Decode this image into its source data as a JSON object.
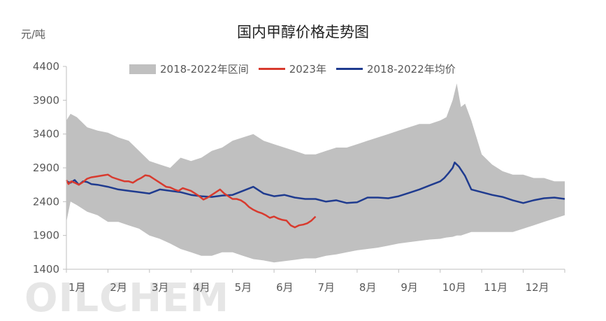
{
  "unit_label": "元/吨",
  "watermark": "OILCHEM",
  "chart_data": {
    "type": "line",
    "title": "国内甲醇价格走势图",
    "ylabel": "元/吨",
    "xlabel": "",
    "ylim": [
      1400,
      4400
    ],
    "yticks": [
      1400,
      1900,
      2400,
      2900,
      3400,
      3900,
      4400
    ],
    "xlim": [
      1,
      13
    ],
    "categories": [
      "1月",
      "2月",
      "3月",
      "4月",
      "5月",
      "6月",
      "7月",
      "8月",
      "9月",
      "10月",
      "11月",
      "12月"
    ],
    "grid": false,
    "legend": "top",
    "colors": {
      "range": "#c0c0c0",
      "y2023": "#d83a2e",
      "avg": "#1f3b8f"
    },
    "range": {
      "name": "2018-2022年区间",
      "x": [
        1.0,
        1.1,
        1.25,
        1.5,
        1.75,
        2.0,
        2.25,
        2.5,
        2.75,
        3.0,
        3.25,
        3.5,
        3.75,
        4.0,
        4.25,
        4.5,
        4.75,
        5.0,
        5.25,
        5.5,
        5.75,
        6.0,
        6.25,
        6.5,
        6.75,
        7.0,
        7.25,
        7.5,
        7.75,
        8.0,
        8.25,
        8.5,
        8.75,
        9.0,
        9.25,
        9.5,
        9.75,
        10.0,
        10.15,
        10.3,
        10.4,
        10.5,
        10.6,
        10.75,
        11.0,
        11.25,
        11.5,
        11.75,
        12.0,
        12.25,
        12.5,
        12.75,
        13.0
      ],
      "upper": [
        3600,
        3700,
        3650,
        3500,
        3450,
        3420,
        3350,
        3300,
        3150,
        3000,
        2950,
        2900,
        3050,
        3000,
        3050,
        3150,
        3200,
        3300,
        3350,
        3400,
        3300,
        3250,
        3200,
        3150,
        3100,
        3100,
        3150,
        3200,
        3200,
        3250,
        3300,
        3350,
        3400,
        3450,
        3500,
        3550,
        3550,
        3600,
        3650,
        3900,
        4150,
        3800,
        3850,
        3600,
        3100,
        2950,
        2850,
        2800,
        2800,
        2750,
        2750,
        2700,
        2700
      ],
      "lower": [
        2100,
        2400,
        2350,
        2250,
        2200,
        2100,
        2100,
        2050,
        2000,
        1900,
        1850,
        1780,
        1700,
        1650,
        1600,
        1600,
        1650,
        1650,
        1600,
        1550,
        1530,
        1500,
        1520,
        1540,
        1560,
        1560,
        1600,
        1620,
        1650,
        1680,
        1700,
        1720,
        1750,
        1780,
        1800,
        1820,
        1840,
        1850,
        1870,
        1880,
        1900,
        1900,
        1920,
        1950,
        1950,
        1950,
        1950,
        1950,
        2000,
        2050,
        2100,
        2150,
        2200
      ]
    },
    "series": [
      {
        "name": "2023年",
        "x": [
          1.0,
          1.05,
          1.12,
          1.2,
          1.3,
          1.4,
          1.5,
          1.6,
          1.7,
          1.8,
          1.9,
          2.0,
          2.1,
          2.2,
          2.3,
          2.4,
          2.5,
          2.6,
          2.7,
          2.8,
          2.9,
          3.0,
          3.1,
          3.2,
          3.3,
          3.4,
          3.5,
          3.6,
          3.7,
          3.8,
          3.9,
          4.0,
          4.1,
          4.2,
          4.3,
          4.4,
          4.5,
          4.6,
          4.7,
          4.8,
          4.9,
          5.0,
          5.1,
          5.2,
          5.3,
          5.4,
          5.5,
          5.6,
          5.7,
          5.8,
          5.9,
          6.0,
          6.1,
          6.2,
          6.3,
          6.4,
          6.5,
          6.6,
          6.7,
          6.8,
          6.9,
          7.0
        ],
        "values": [
          2720,
          2660,
          2700,
          2680,
          2650,
          2690,
          2740,
          2760,
          2770,
          2780,
          2790,
          2800,
          2760,
          2740,
          2720,
          2700,
          2700,
          2680,
          2720,
          2750,
          2790,
          2780,
          2740,
          2700,
          2660,
          2620,
          2610,
          2580,
          2560,
          2600,
          2580,
          2560,
          2520,
          2480,
          2430,
          2460,
          2500,
          2540,
          2580,
          2520,
          2480,
          2440,
          2440,
          2420,
          2380,
          2320,
          2280,
          2250,
          2230,
          2200,
          2160,
          2180,
          2150,
          2130,
          2120,
          2050,
          2020,
          2050,
          2060,
          2080,
          2120,
          2180
        ]
      },
      {
        "name": "2018-2022年均价",
        "x": [
          1.0,
          1.1,
          1.2,
          1.3,
          1.4,
          1.5,
          1.6,
          1.75,
          2.0,
          2.25,
          2.5,
          2.75,
          3.0,
          3.25,
          3.5,
          3.75,
          4.0,
          4.25,
          4.5,
          4.75,
          5.0,
          5.25,
          5.5,
          5.75,
          6.0,
          6.25,
          6.5,
          6.75,
          7.0,
          7.25,
          7.5,
          7.75,
          8.0,
          8.25,
          8.5,
          8.75,
          9.0,
          9.25,
          9.5,
          9.75,
          10.0,
          10.1,
          10.2,
          10.3,
          10.35,
          10.45,
          10.6,
          10.75,
          11.0,
          11.25,
          11.5,
          11.75,
          12.0,
          12.25,
          12.5,
          12.75,
          13.0
        ],
        "values": [
          2700,
          2680,
          2720,
          2650,
          2700,
          2690,
          2660,
          2650,
          2620,
          2580,
          2560,
          2540,
          2520,
          2580,
          2560,
          2540,
          2500,
          2480,
          2470,
          2490,
          2500,
          2560,
          2620,
          2520,
          2480,
          2500,
          2460,
          2440,
          2440,
          2400,
          2420,
          2380,
          2390,
          2460,
          2460,
          2450,
          2480,
          2530,
          2580,
          2640,
          2700,
          2750,
          2820,
          2900,
          2980,
          2920,
          2780,
          2580,
          2540,
          2500,
          2470,
          2420,
          2380,
          2420,
          2450,
          2460,
          2440
        ]
      }
    ]
  }
}
